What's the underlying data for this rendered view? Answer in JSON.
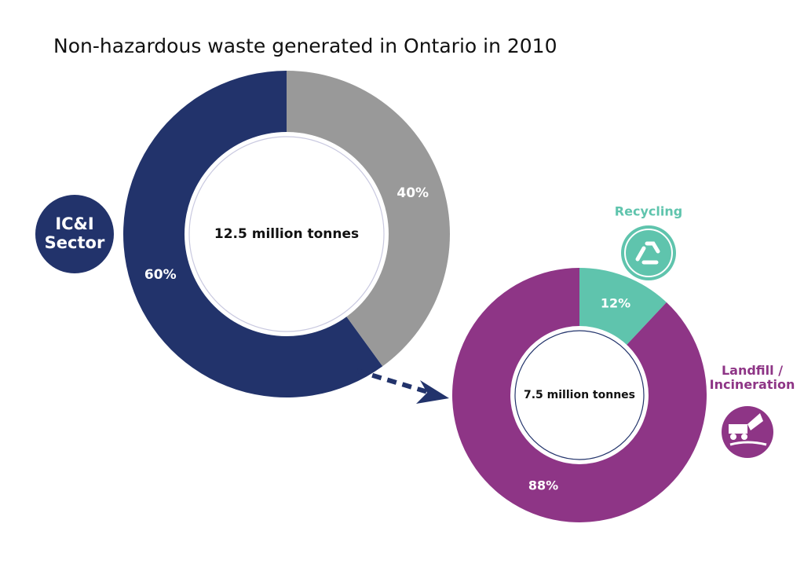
{
  "title": "Non-hazardous waste generated in Ontario in 2010",
  "chart_data": [
    {
      "type": "donut",
      "direction": "counterclockwise",
      "center_label": "12.5 million tonnes",
      "categories": [
        "IC&I\nSector",
        null
      ],
      "values": [
        60,
        40
      ],
      "value_labels": [
        "60%",
        "40%"
      ],
      "colors": [
        "#22336b",
        "#999999"
      ]
    },
    {
      "type": "donut",
      "direction": "clockwise",
      "center_label": "7.5 million tonnes",
      "categories": [
        "Recycling",
        "Landfill /\nIncineration"
      ],
      "values": [
        12,
        88
      ],
      "value_labels": [
        "12%",
        "88%"
      ],
      "colors": [
        "#5fc4ad",
        "#8e3586"
      ]
    }
  ]
}
